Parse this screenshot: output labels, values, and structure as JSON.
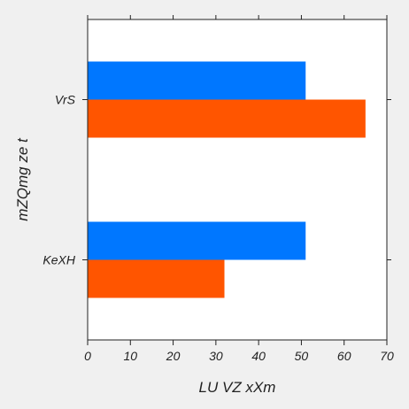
{
  "chart_data": {
    "type": "bar",
    "orientation": "horizontal",
    "categories": [
      "VrS",
      "KeXH"
    ],
    "series": [
      {
        "values": [
          51,
          51
        ],
        "color": "#0077ff"
      },
      {
        "values": [
          65,
          32
        ],
        "color": "#ff5500"
      }
    ],
    "xlabel": "LU VZ  xXm",
    "ylabel": "mZQmg ze t",
    "xlim": [
      0,
      70
    ],
    "xticks": [
      0,
      10,
      20,
      30,
      40,
      50,
      60,
      70
    ],
    "grid": false
  }
}
